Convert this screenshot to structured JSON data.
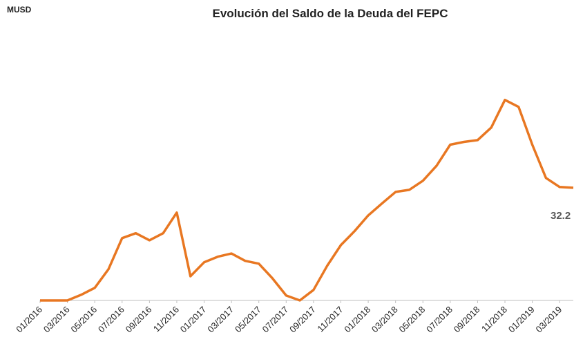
{
  "chart_data": {
    "type": "line",
    "title": "Evolución del Saldo de la Deuda del FEPC",
    "y_label": "MUSD",
    "annotation": "32.2",
    "categories": [
      "01/2016",
      null,
      "03/2016",
      null,
      "05/2016",
      null,
      "07/2016",
      null,
      "09/2016",
      null,
      "11/2016",
      null,
      "01/2017",
      null,
      "03/2017",
      null,
      "05/2017",
      null,
      "07/2017",
      null,
      "09/2017",
      null,
      "11/2017",
      null,
      "01/2018",
      null,
      "03/2018",
      null,
      "05/2018",
      null,
      "07/2018",
      null,
      "09/2018",
      null,
      "11/2018",
      null,
      "01/2019",
      null,
      "03/2019",
      null
    ],
    "series": [
      {
        "name": "Saldo de la Deuda",
        "color": "#e87722",
        "values": [
          0,
          0,
          0,
          1.6,
          3.6,
          8.9,
          17.8,
          19.2,
          17.2,
          19.2,
          25.1,
          6.9,
          10.9,
          12.5,
          13.4,
          11.3,
          10.5,
          6.3,
          1.4,
          0,
          3.0,
          9.9,
          15.8,
          19.8,
          24.3,
          27.7,
          31.0,
          31.6,
          34.2,
          38.5,
          44.5,
          45.3,
          45.8,
          49.4,
          57.3,
          55.3,
          44.5,
          35.0,
          32.4,
          32.2
        ]
      }
    ],
    "ylim": [
      0,
      60
    ]
  }
}
